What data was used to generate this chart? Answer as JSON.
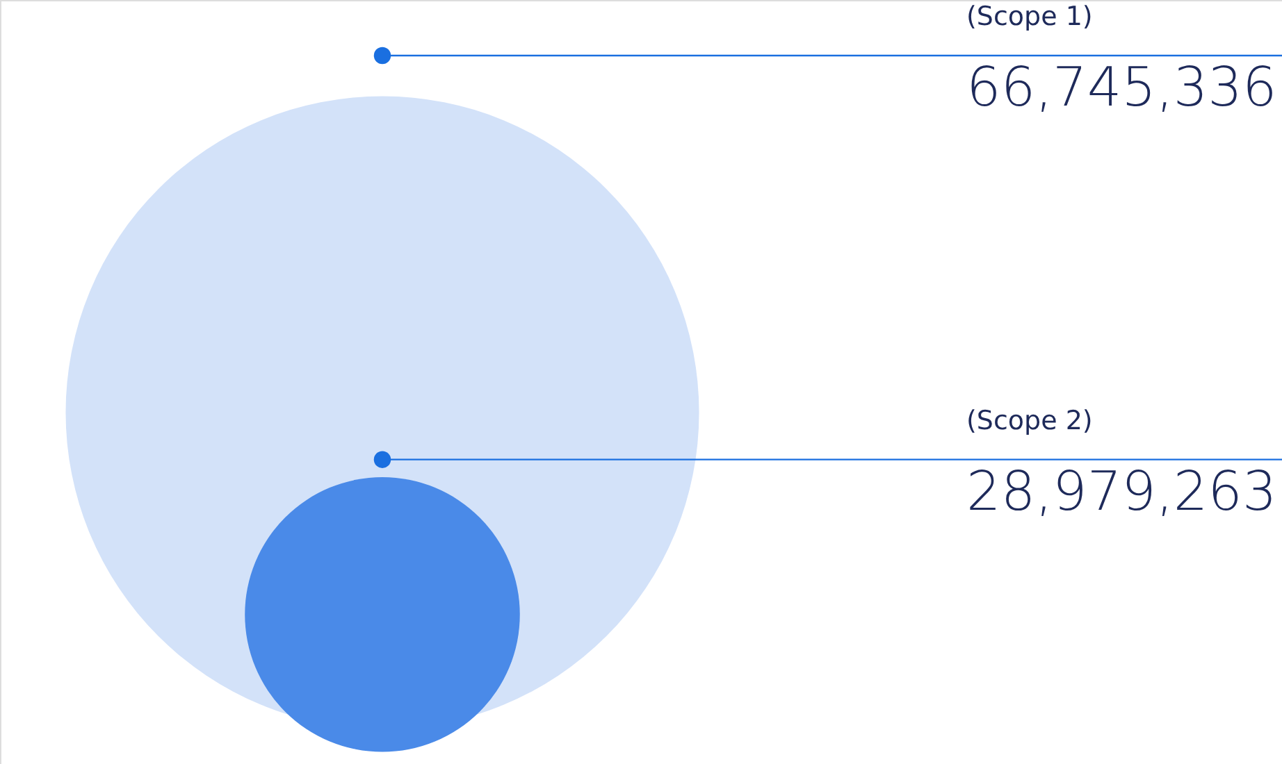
{
  "chart_data": {
    "type": "other",
    "categories": [
      "(Scope 1)",
      "(Scope 2)"
    ],
    "values": [
      66745336,
      28979263
    ],
    "colors": [
      "#d3e2f9",
      "#4a8ae8"
    ],
    "value_labels": [
      "66,745,336",
      "28,979,263"
    ]
  }
}
